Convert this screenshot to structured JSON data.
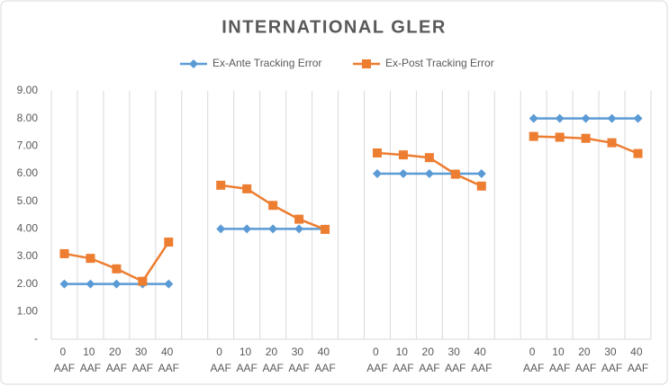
{
  "chart_data": {
    "type": "line",
    "title": "INTERNATIONAL GLER",
    "categories": [
      "0 AAF",
      "10 AAF",
      "20 AAF",
      "30 AAF",
      "40 AAF",
      null,
      "0 AAF",
      "10 AAF",
      "20 AAF",
      "30 AAF",
      "40 AAF",
      null,
      "0 AAF",
      "10 AAF",
      "20 AAF",
      "30 AAF",
      "40 AAF",
      null,
      "0 AAF",
      "10 AAF",
      "20 AAF",
      "30 AAF",
      "40 AAF"
    ],
    "series": [
      {
        "name": "Ex-Ante Tracking Error",
        "color": "#5b9bd5",
        "marker": "diamond",
        "values": [
          2,
          2,
          2,
          2,
          2,
          null,
          4,
          4,
          4,
          4,
          4,
          null,
          6,
          6,
          6,
          6,
          6,
          null,
          8,
          8,
          8,
          8,
          8
        ]
      },
      {
        "name": "Ex-Post Tracking Error",
        "color": "#ed7d31",
        "marker": "square",
        "values": [
          3.1,
          2.93,
          2.55,
          2.1,
          3.52,
          null,
          5.58,
          5.45,
          4.85,
          4.35,
          3.98,
          null,
          6.75,
          6.68,
          6.58,
          5.98,
          5.55,
          null,
          7.35,
          7.32,
          7.28,
          7.12,
          6.73
        ]
      }
    ],
    "ylim": [
      0,
      9
    ],
    "yticks": [
      {
        "value": 0,
        "label": "-"
      },
      {
        "value": 1,
        "label": "1.00"
      },
      {
        "value": 2,
        "label": "2.00"
      },
      {
        "value": 3,
        "label": "3.00"
      },
      {
        "value": 4,
        "label": "4.00"
      },
      {
        "value": 5,
        "label": "5.00"
      },
      {
        "value": 6,
        "label": "6.00"
      },
      {
        "value": 7,
        "label": "7.00"
      },
      {
        "value": 8,
        "label": "8.00"
      },
      {
        "value": 9,
        "label": "9.00"
      }
    ],
    "legend": "top"
  }
}
